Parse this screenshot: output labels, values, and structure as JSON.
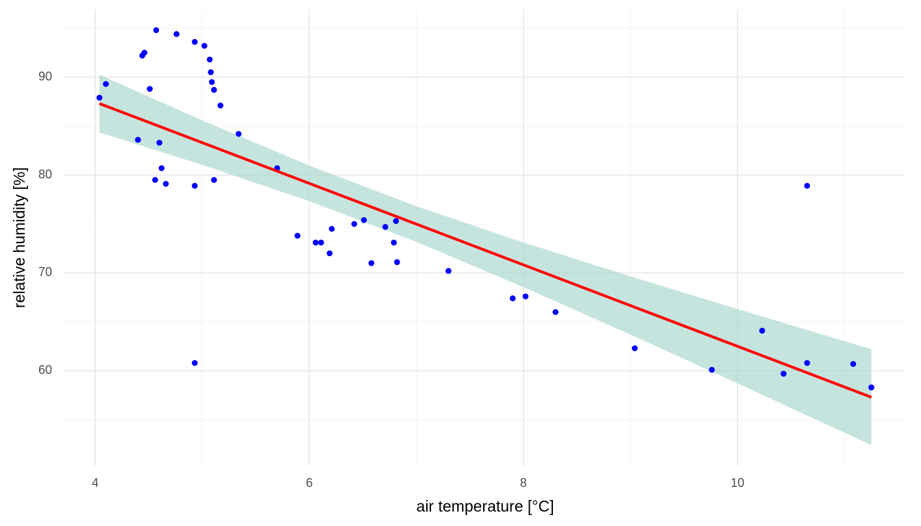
{
  "chart_data": {
    "type": "scatter",
    "x_label": "air temperature [°C]",
    "y_label": "relative humidity [%]",
    "xlim": [
      3.7,
      11.56
    ],
    "ylim": [
      50.3,
      96.9
    ],
    "xticks": [
      4,
      6,
      8,
      10
    ],
    "yticks": [
      60,
      70,
      80,
      90
    ],
    "x_minor_grid": [
      5,
      7,
      9,
      11
    ],
    "y_minor_grid": [
      55,
      65,
      75,
      85,
      95
    ],
    "grid": true,
    "points": {
      "color": "#0000ff",
      "x": [
        4.04,
        4.1,
        4.57,
        4.76,
        4.93,
        5.02,
        5.07,
        5.08,
        5.09,
        5.11,
        5.17,
        4.44,
        4.46,
        4.51,
        4.4,
        4.6,
        4.62,
        4.56,
        4.66,
        4.93,
        5.11,
        5.34,
        5.7,
        4.93,
        5.89,
        6.06,
        6.11,
        6.21,
        6.19,
        6.42,
        6.51,
        6.58,
        6.71,
        6.81,
        6.79,
        6.82,
        7.3,
        7.9,
        8.02,
        8.3,
        9.04,
        9.76,
        10.23,
        10.43,
        10.65,
        10.65,
        11.08,
        11.25
      ],
      "y": [
        87.9,
        89.3,
        94.8,
        94.4,
        93.6,
        93.2,
        91.8,
        90.5,
        89.5,
        88.7,
        87.1,
        92.2,
        92.5,
        88.8,
        83.6,
        83.3,
        80.7,
        79.5,
        79.1,
        78.9,
        79.5,
        84.2,
        80.7,
        60.8,
        73.8,
        73.1,
        73.1,
        74.5,
        72.0,
        75.0,
        75.4,
        71.0,
        74.7,
        75.3,
        73.1,
        71.1,
        70.2,
        67.4,
        67.6,
        66.0,
        62.3,
        60.1,
        64.1,
        59.7,
        78.9,
        60.8,
        60.7,
        58.3
      ]
    },
    "fit": {
      "color": "#ff0000",
      "x": [
        4.04,
        11.25
      ],
      "y": [
        87.3,
        57.3
      ]
    },
    "band": {
      "color": "#a8d5cc",
      "x": [
        4.04,
        5,
        6,
        7,
        8,
        9,
        10,
        11.25
      ],
      "lower": [
        84.35,
        81.03,
        77.33,
        73.17,
        68.55,
        63.69,
        58.71,
        52.4
      ],
      "upper": [
        90.25,
        85.59,
        80.97,
        76.81,
        73.11,
        69.65,
        66.31,
        62.2
      ]
    }
  }
}
